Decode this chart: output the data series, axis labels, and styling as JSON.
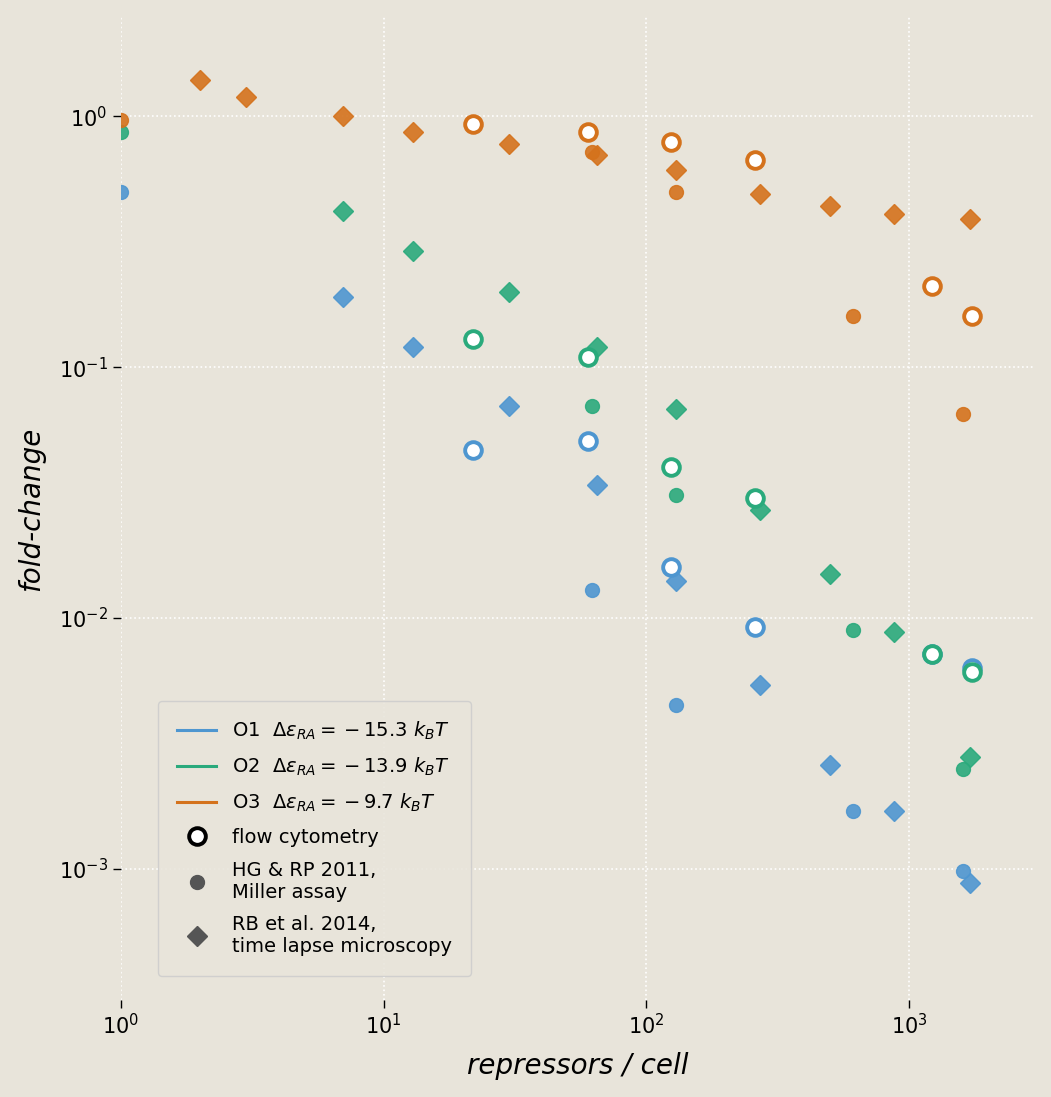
{
  "background_color": "#e8e4da",
  "xlim": [
    1,
    3000
  ],
  "ylim": [
    0.0003,
    2.5
  ],
  "xlabel": "repressors / cell",
  "ylabel": "fold-change",
  "operators": {
    "O1": {
      "de_ra": -15.3,
      "color": "#4e96d0"
    },
    "O2": {
      "de_ra": -13.9,
      "color": "#2aaa7c"
    },
    "O3": {
      "de_ra": -9.7,
      "color": "#d4721c"
    }
  },
  "NNS": 4,
  "flow_cytometry": {
    "O1": {
      "R": [
        22,
        60,
        124,
        260,
        1220,
        1740
      ],
      "fc": [
        0.047,
        0.051,
        0.016,
        0.0092,
        0.0072,
        0.0063
      ]
    },
    "O2": {
      "R": [
        22,
        60,
        124,
        260,
        1220,
        1740
      ],
      "fc": [
        0.13,
        0.11,
        0.04,
        0.03,
        0.0072,
        0.0061
      ]
    },
    "O3": {
      "R": [
        22,
        60,
        124,
        260,
        1220,
        1740
      ],
      "fc": [
        0.93,
        0.87,
        0.79,
        0.67,
        0.21,
        0.16
      ]
    }
  },
  "miller_assay": {
    "O1": {
      "R": [
        1,
        62,
        130,
        610,
        1610
      ],
      "fc": [
        0.5,
        0.013,
        0.0045,
        0.0017,
        0.00098
      ]
    },
    "O2": {
      "R": [
        1,
        62,
        130,
        610,
        1610
      ],
      "fc": [
        0.87,
        0.07,
        0.031,
        0.009,
        0.0025
      ]
    },
    "O3": {
      "R": [
        1,
        62,
        130,
        610,
        1610
      ],
      "fc": [
        0.97,
        0.72,
        0.5,
        0.16,
        0.065
      ]
    }
  },
  "microscopy": {
    "O1": {
      "R": [
        7,
        13,
        30,
        65,
        130,
        270,
        500,
        880,
        1700
      ],
      "fc": [
        0.19,
        0.12,
        0.07,
        0.034,
        0.014,
        0.0054,
        0.0026,
        0.0017,
        0.00088
      ]
    },
    "O2": {
      "R": [
        7,
        13,
        30,
        65,
        130,
        270,
        500,
        880,
        1700
      ],
      "fc": [
        0.42,
        0.29,
        0.2,
        0.12,
        0.068,
        0.027,
        0.015,
        0.0088,
        0.0028
      ]
    },
    "O3": {
      "R": [
        2,
        3,
        7,
        13,
        30,
        65,
        130,
        270,
        500,
        880,
        1700
      ],
      "fc": [
        1.4,
        1.2,
        1.0,
        0.87,
        0.78,
        0.7,
        0.61,
        0.49,
        0.44,
        0.41,
        0.39
      ]
    }
  },
  "legend_labels": {
    "O1": "O1  $\\Delta\\varepsilon_{RA}=-15.3\\ k_BT$",
    "O2": "O2  $\\Delta\\varepsilon_{RA}=-13.9\\ k_BT$",
    "O3": "O3  $\\Delta\\varepsilon_{RA}=-9.7\\ k_BT$"
  }
}
